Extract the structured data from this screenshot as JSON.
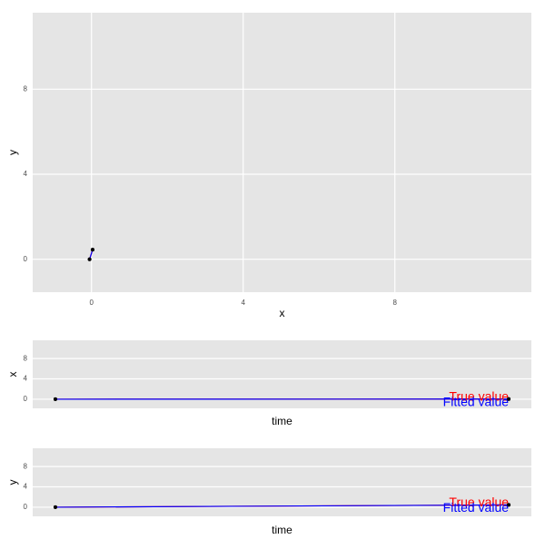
{
  "chart_data": [
    {
      "type": "line",
      "xlabel": "x",
      "ylabel": "y",
      "xlim": [
        -1.55,
        11.6
      ],
      "ylim": [
        -1.55,
        11.6
      ],
      "xticks": [
        0,
        4,
        8
      ],
      "yticks": [
        0,
        4,
        8
      ],
      "grid": true,
      "series": [
        {
          "color": "#ff0000",
          "x": [
            -0.05,
            0.03
          ],
          "values": [
            0,
            0.45
          ]
        },
        {
          "color": "#0000ff",
          "x": [
            -0.05,
            0.03
          ],
          "values": [
            0,
            0.45
          ]
        }
      ]
    },
    {
      "type": "line",
      "xlabel": "time",
      "ylabel": "x",
      "xlim": [
        -0.05,
        1.05
      ],
      "ylim": [
        -1.8,
        11.6
      ],
      "yticks": [
        0,
        4,
        8
      ],
      "grid": true,
      "series": [
        {
          "name": "True value",
          "color": "#ff0000",
          "x": [
            0,
            1
          ],
          "values": [
            0,
            0.03
          ]
        },
        {
          "name": "Fitted value",
          "color": "#0000ff",
          "x": [
            0,
            1
          ],
          "values": [
            0,
            0.03
          ]
        }
      ]
    },
    {
      "type": "line",
      "xlabel": "time",
      "ylabel": "y",
      "xlim": [
        -0.05,
        1.05
      ],
      "ylim": [
        -1.8,
        11.6
      ],
      "yticks": [
        0,
        4,
        8
      ],
      "grid": true,
      "series": [
        {
          "name": "True value",
          "color": "#ff0000",
          "x": [
            0,
            1
          ],
          "values": [
            0,
            0.45
          ]
        },
        {
          "name": "Fitted value",
          "color": "#0000ff",
          "x": [
            0,
            1
          ],
          "values": [
            0,
            0.45
          ]
        }
      ]
    }
  ]
}
